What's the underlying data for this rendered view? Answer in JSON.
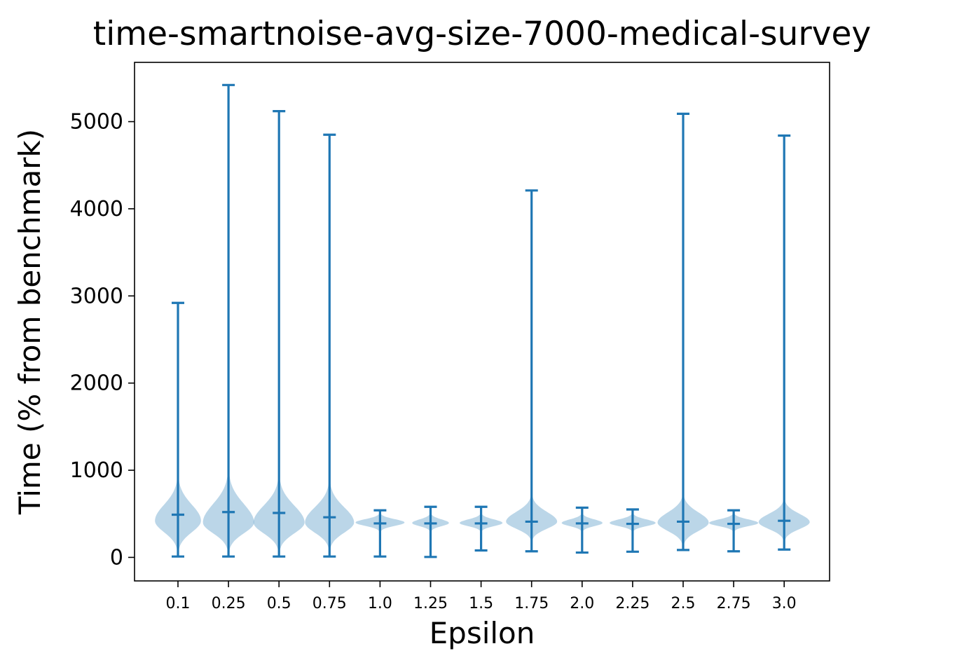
{
  "chart_data": {
    "type": "violin",
    "title": "time-smartnoise-avg-size-7000-medical-survey",
    "xlabel": "Epsilon",
    "ylabel": "Time (% from benchmark)",
    "ylim": [
      -270,
      5680
    ],
    "yticks": [
      0,
      1000,
      2000,
      3000,
      4000,
      5000
    ],
    "ytick_labels": [
      "0",
      "1000",
      "2000",
      "3000",
      "4000",
      "5000"
    ],
    "categories": [
      "0.1",
      "0.25",
      "0.5",
      "0.75",
      "1.0",
      "1.25",
      "1.5",
      "1.75",
      "2.0",
      "2.25",
      "2.5",
      "2.75",
      "3.0"
    ],
    "series": [
      {
        "min": [
          10,
          10,
          10,
          10,
          10,
          5,
          80,
          70,
          55,
          65,
          85,
          70,
          90
        ],
        "max": [
          2920,
          5420,
          5120,
          4850,
          540,
          580,
          580,
          4210,
          570,
          550,
          5090,
          540,
          4840
        ],
        "mean": [
          490,
          520,
          510,
          460,
          390,
          390,
          390,
          410,
          390,
          385,
          410,
          385,
          420
        ],
        "density_center": [
          420,
          400,
          400,
          400,
          400,
          395,
          395,
          410,
          395,
          395,
          400,
          395,
          405
        ],
        "density_span": [
          [
            80,
            900
          ],
          [
            80,
            950
          ],
          [
            80,
            900
          ],
          [
            100,
            850
          ],
          [
            300,
            500
          ],
          [
            300,
            500
          ],
          [
            300,
            500
          ],
          [
            200,
            700
          ],
          [
            300,
            500
          ],
          [
            300,
            500
          ],
          [
            150,
            700
          ],
          [
            300,
            500
          ],
          [
            200,
            650
          ]
        ],
        "density_width": [
          0.45,
          0.5,
          0.5,
          0.48,
          0.48,
          0.36,
          0.42,
          0.5,
          0.4,
          0.45,
          0.5,
          0.48,
          0.5
        ]
      }
    ],
    "colors": {
      "line": "#1f77b4",
      "body": "#1f77b4",
      "body_alpha": 0.3
    },
    "grid": false,
    "legend": "none"
  }
}
